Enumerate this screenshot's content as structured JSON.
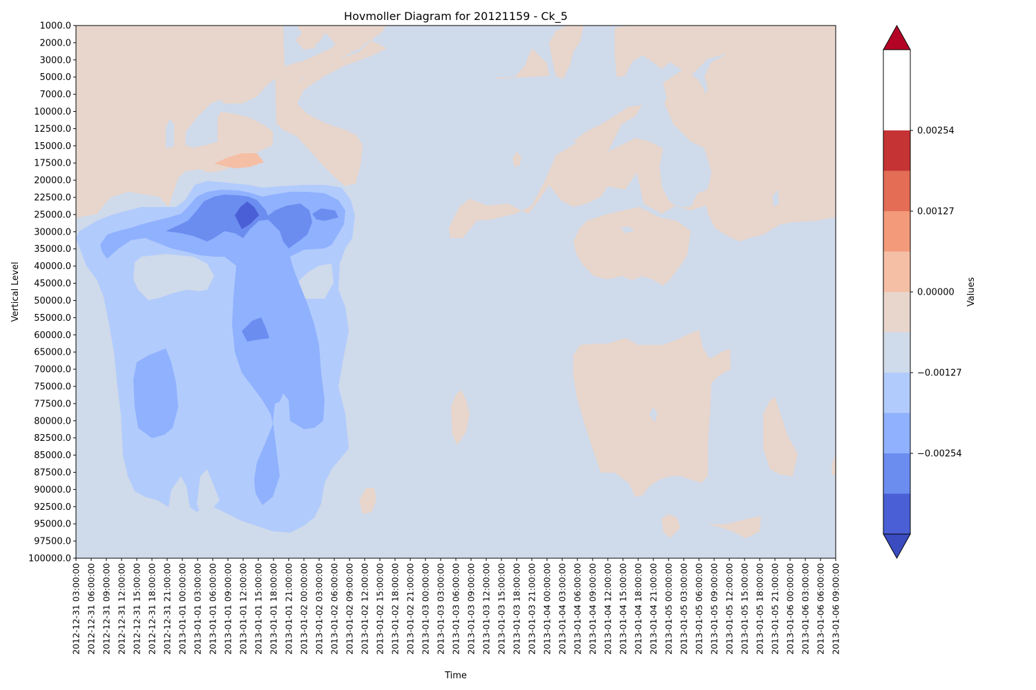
{
  "chart_data": {
    "type": "heatmap",
    "title": "Hovmoller Diagram for 20121159 - Ck_5",
    "xlabel": "Time",
    "ylabel": "Vertical Level",
    "colorbar_label": "Values",
    "grid": false,
    "y_inverted": true,
    "x": [
      "2012-12-31 03:00:00",
      "2012-12-31 06:00:00",
      "2012-12-31 09:00:00",
      "2012-12-31 12:00:00",
      "2012-12-31 15:00:00",
      "2012-12-31 18:00:00",
      "2012-12-31 21:00:00",
      "2013-01-01 00:00:00",
      "2013-01-01 03:00:00",
      "2013-01-01 06:00:00",
      "2013-01-01 09:00:00",
      "2013-01-01 12:00:00",
      "2013-01-01 15:00:00",
      "2013-01-01 18:00:00",
      "2013-01-01 21:00:00",
      "2013-01-02 00:00:00",
      "2013-01-02 03:00:00",
      "2013-01-02 06:00:00",
      "2013-01-02 09:00:00",
      "2013-01-02 12:00:00",
      "2013-01-02 15:00:00",
      "2013-01-02 18:00:00",
      "2013-01-02 21:00:00",
      "2013-01-03 00:00:00",
      "2013-01-03 03:00:00",
      "2013-01-03 06:00:00",
      "2013-01-03 09:00:00",
      "2013-01-03 12:00:00",
      "2013-01-03 15:00:00",
      "2013-01-03 18:00:00",
      "2013-01-03 21:00:00",
      "2013-01-04 00:00:00",
      "2013-01-04 03:00:00",
      "2013-01-04 06:00:00",
      "2013-01-04 09:00:00",
      "2013-01-04 12:00:00",
      "2013-01-04 15:00:00",
      "2013-01-04 18:00:00",
      "2013-01-04 21:00:00",
      "2013-01-05 00:00:00",
      "2013-01-05 03:00:00",
      "2013-01-05 06:00:00",
      "2013-01-05 09:00:00",
      "2013-01-05 12:00:00",
      "2013-01-05 15:00:00",
      "2013-01-05 18:00:00",
      "2013-01-05 21:00:00",
      "2013-01-06 00:00:00",
      "2013-01-06 03:00:00",
      "2013-01-06 06:00:00",
      "2013-01-06 09:00:00"
    ],
    "y": [
      "1000.0",
      "2000.0",
      "3000.0",
      "5000.0",
      "7000.0",
      "10000.0",
      "12500.0",
      "15000.0",
      "17500.0",
      "20000.0",
      "22500.0",
      "25000.0",
      "30000.0",
      "35000.0",
      "40000.0",
      "45000.0",
      "50000.0",
      "55000.0",
      "60000.0",
      "65000.0",
      "70000.0",
      "75000.0",
      "77500.0",
      "80000.0",
      "82500.0",
      "85000.0",
      "87500.0",
      "90000.0",
      "92500.0",
      "95000.0",
      "97500.0",
      "100000.0"
    ],
    "colorbar_ticks": [
      "0.00254",
      "0.00127",
      "0.00000",
      "−0.00127",
      "−0.00254"
    ],
    "colorbar_tick_values": [
      0.00254,
      0.00127,
      0.0,
      -0.00127,
      -0.00254
    ],
    "levels_range": [
      -0.00381,
      0.00381
    ],
    "level_step": 0.000635,
    "level_colors": [
      "#4a5fd5",
      "#6b8df0",
      "#8fb1fe",
      "#b1cbfc",
      "#cfdaea",
      "#e8d6cc",
      "#f5bfa6",
      "#f29a7a",
      "#e36d55",
      "#c53334"
    ],
    "extend_colors": {
      "under": "#3a4cc0",
      "over": "#b40426"
    },
    "colors": {
      "neutral_negative": "#cfdaea",
      "neutral_positive": "#e8d6cc",
      "weak_negative": "#b1cbfc",
      "moderate_negative": "#8fb1fe",
      "strong_negative": "#6b8df0",
      "very_strong_negative": "#4a5fd5",
      "weak_positive": "#f5bfa6"
    }
  }
}
